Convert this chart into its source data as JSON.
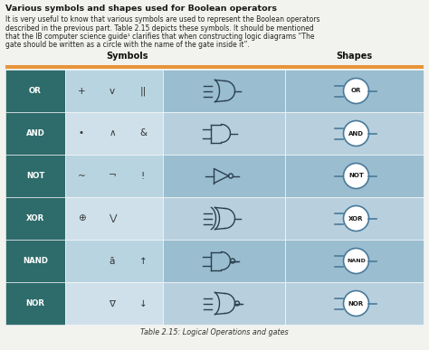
{
  "title": "Various symbols and shapes used for Boolean operators",
  "body_lines": [
    "It is very useful to know that various symbols are used to represent the Boolean operators",
    "described in the previous part. Table 2.15 depicts these symbols. It should be mentioned",
    "that the IB computer science guide¹ clarifies that when constructing logic diagrams “The",
    "gate should be written as a circle with the name of the gate inside it”."
  ],
  "caption": "Table 2.15: Logical Operations and gates",
  "rows": [
    {
      "name": "OR",
      "sym1": "+",
      "sym2": "v",
      "sym3": "||"
    },
    {
      "name": "AND",
      "sym1": "•",
      "sym2": "∧",
      "sym3": "&"
    },
    {
      "name": "NOT",
      "sym1": "~",
      "sym2": "¬",
      "sym3": "!"
    },
    {
      "name": "XOR",
      "sym1": "⊕",
      "sym2": "⋁",
      "sym3": ""
    },
    {
      "name": "NAND",
      "sym1": "",
      "sym2": "ā",
      "sym3": "↑"
    },
    {
      "name": "NOR",
      "sym1": "",
      "sym2": "∇",
      "sym3": "↓"
    }
  ],
  "header_orange": "#e8943a",
  "dark_col_bg": "#2e6b6b",
  "light_bg_a": "#b8d4e0",
  "light_bg_b": "#cfe0ea",
  "gate_bg_a": "#9abdd0",
  "gate_bg_b": "#b8d0de",
  "shape_bg_a": "#9abdd0",
  "shape_bg_b": "#b8d0de",
  "gate_color": "#2a4050",
  "circle_edge": "#4a7a9a",
  "white": "#ffffff",
  "fig_bg": "#f2f2ee",
  "text_dark": "#1a1a1a",
  "text_body": "#222222",
  "header_text": "#111111"
}
